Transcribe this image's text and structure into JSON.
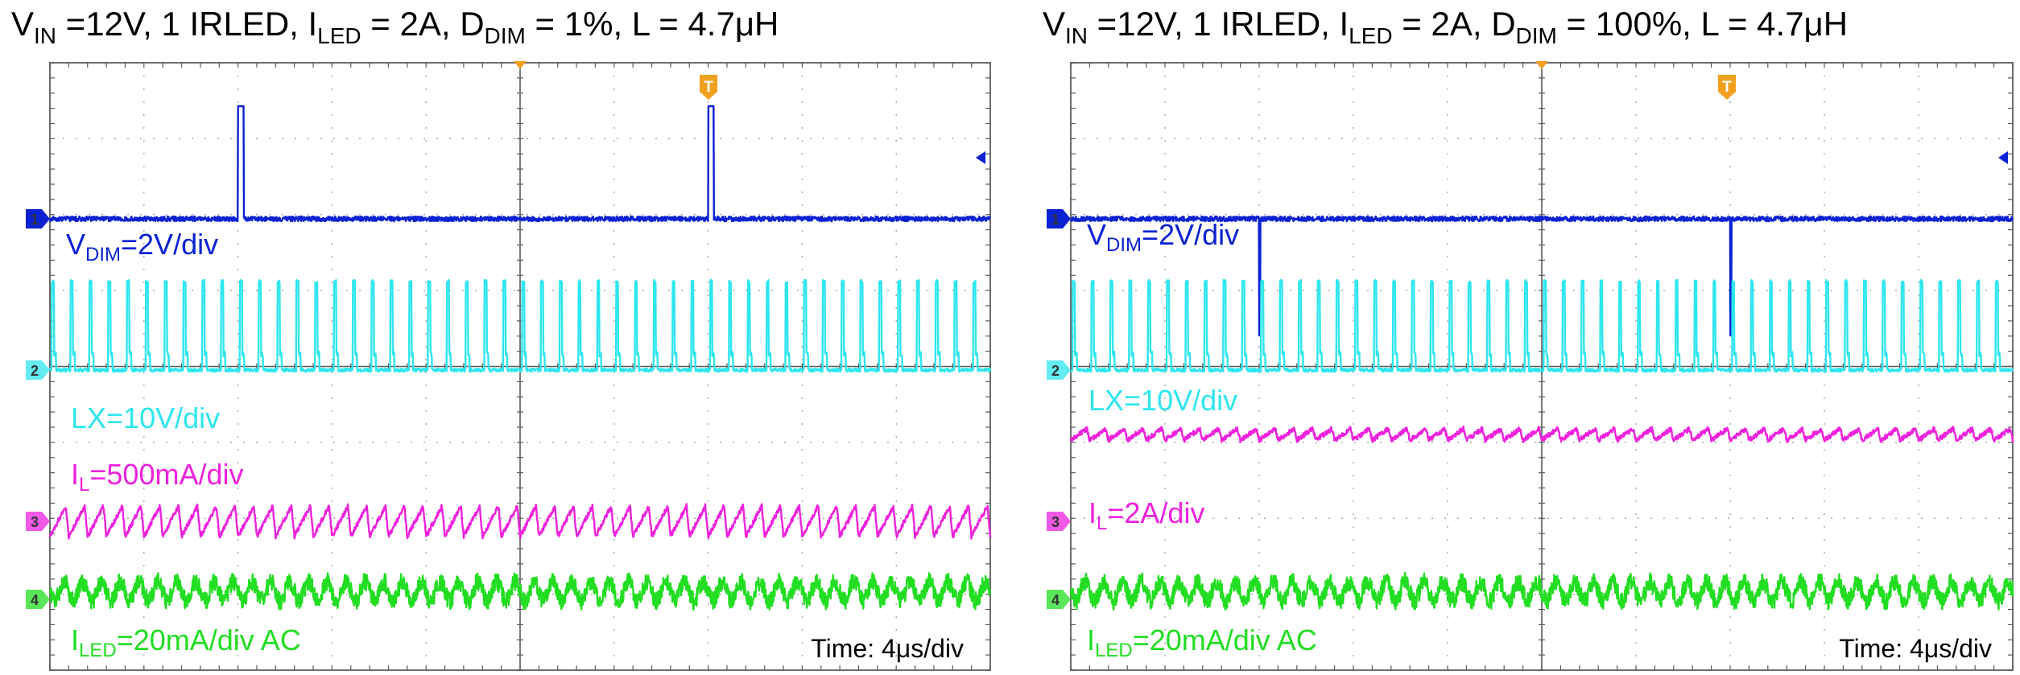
{
  "chart_data": [
    {
      "type": "line",
      "title": {
        "v": "V",
        "v_sub": "IN",
        "a": " =12V, 1 IRLED, I",
        "a_sub": "LED",
        "b": " = 2A, D",
        "b_sub": "DIM",
        "c": " = 1%, L = 4.7μH"
      },
      "duty_cycle_percent": 1,
      "time_per_div": "Time: 4μs/div",
      "trigger_marker": "T",
      "grid": true,
      "divisions": {
        "x": 10,
        "y": 8
      },
      "series": [
        {
          "channel": "1",
          "color": "#0a22d2",
          "label": {
            "main": "V",
            "sub": "DIM",
            "rest": "=2V/div"
          },
          "shape": "dim-pulse",
          "pulse_positions_div": [
            2.0,
            7.0
          ]
        },
        {
          "channel": "2",
          "color": "#2ee6ee",
          "label": {
            "main": "LX=10V/div",
            "sub": "",
            "rest": ""
          },
          "shape": "switching",
          "pulse_period_div": 0.2
        },
        {
          "channel": "3",
          "color": "#ee22dd",
          "label": {
            "main": "I",
            "sub": "L",
            "rest": "=500mA/div"
          },
          "shape": "sawtooth",
          "pulse_period_div": 0.2
        },
        {
          "channel": "4",
          "color": "#22dd22",
          "label": {
            "main": "I",
            "sub": "LED",
            "rest": "=20mA/div AC"
          },
          "shape": "noise-ripple",
          "pulse_period_div": 0.2
        }
      ]
    },
    {
      "type": "line",
      "title": {
        "v": "V",
        "v_sub": "IN",
        "a": " =12V, 1 IRLED, I",
        "a_sub": "LED",
        "b": " = 2A, D",
        "b_sub": "DIM",
        "c": " = 100%, L = 4.7μH"
      },
      "duty_cycle_percent": 100,
      "time_per_div": "Time: 4μs/div",
      "trigger_marker": "T",
      "grid": true,
      "divisions": {
        "x": 10,
        "y": 8
      },
      "series": [
        {
          "channel": "1",
          "color": "#0a22d2",
          "label": {
            "main": "V",
            "sub": "DIM",
            "rest": "=2V/div"
          },
          "shape": "dim-notch",
          "pulse_positions_div": [
            2.0,
            7.0
          ]
        },
        {
          "channel": "2",
          "color": "#2ee6ee",
          "label": {
            "main": "LX=10V/div",
            "sub": "",
            "rest": ""
          },
          "shape": "switching",
          "pulse_period_div": 0.2
        },
        {
          "channel": "3",
          "color": "#ee22dd",
          "label": {
            "main": "I",
            "sub": "L",
            "rest": "=2A/div"
          },
          "shape": "sawtooth",
          "pulse_period_div": 0.2
        },
        {
          "channel": "4",
          "color": "#22dd22",
          "label": {
            "main": "I",
            "sub": "LED",
            "rest": "=20mA/div AC"
          },
          "shape": "noise-ripple",
          "pulse_period_div": 0.2
        }
      ]
    }
  ]
}
